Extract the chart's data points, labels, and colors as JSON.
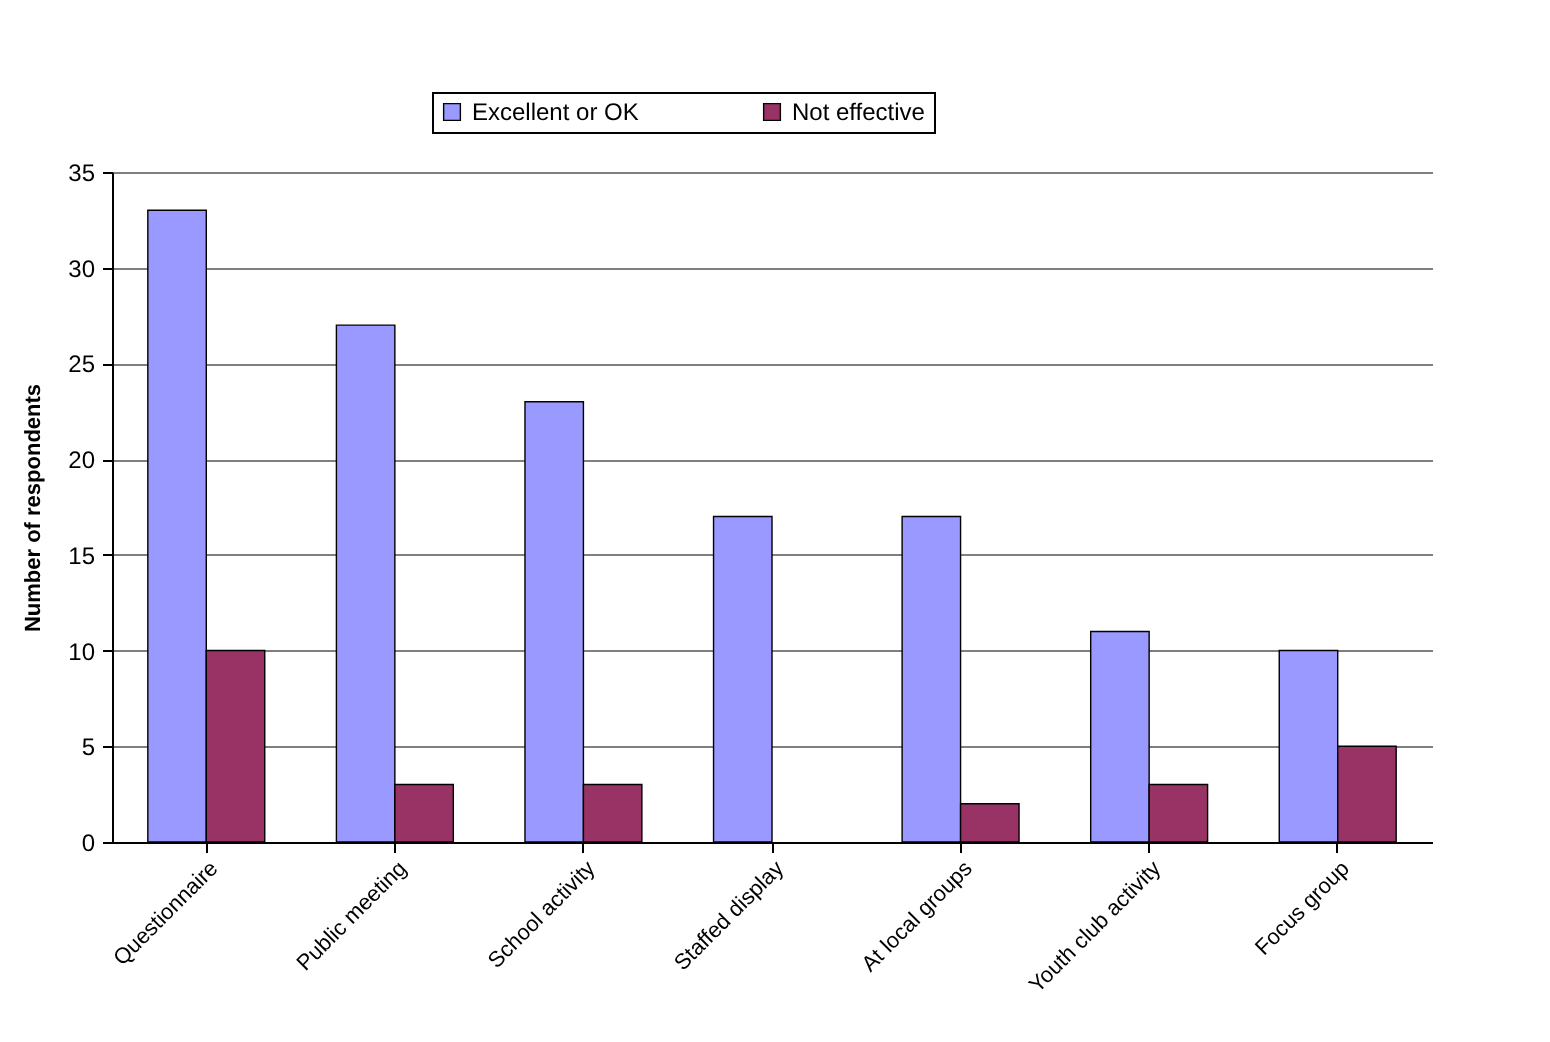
{
  "chart_data": {
    "type": "bar",
    "ylabel": "Number of respondents",
    "categories": [
      "Questionnaire",
      "Public meeting",
      "School activity",
      "Staffed display",
      "At local groups",
      "Youth club activity",
      "Focus group"
    ],
    "series": [
      {
        "name": "Excellent or OK",
        "color": "#9999ff",
        "values": [
          33,
          27,
          23,
          17,
          17,
          11,
          10
        ]
      },
      {
        "name": "Not effective",
        "color": "#993366",
        "values": [
          10,
          3,
          3,
          null,
          2,
          3,
          5
        ]
      }
    ],
    "ylim": [
      0,
      35
    ],
    "yticks": [
      0,
      5,
      10,
      15,
      20,
      25,
      30,
      35
    ],
    "grid": "y",
    "legend": "top"
  }
}
